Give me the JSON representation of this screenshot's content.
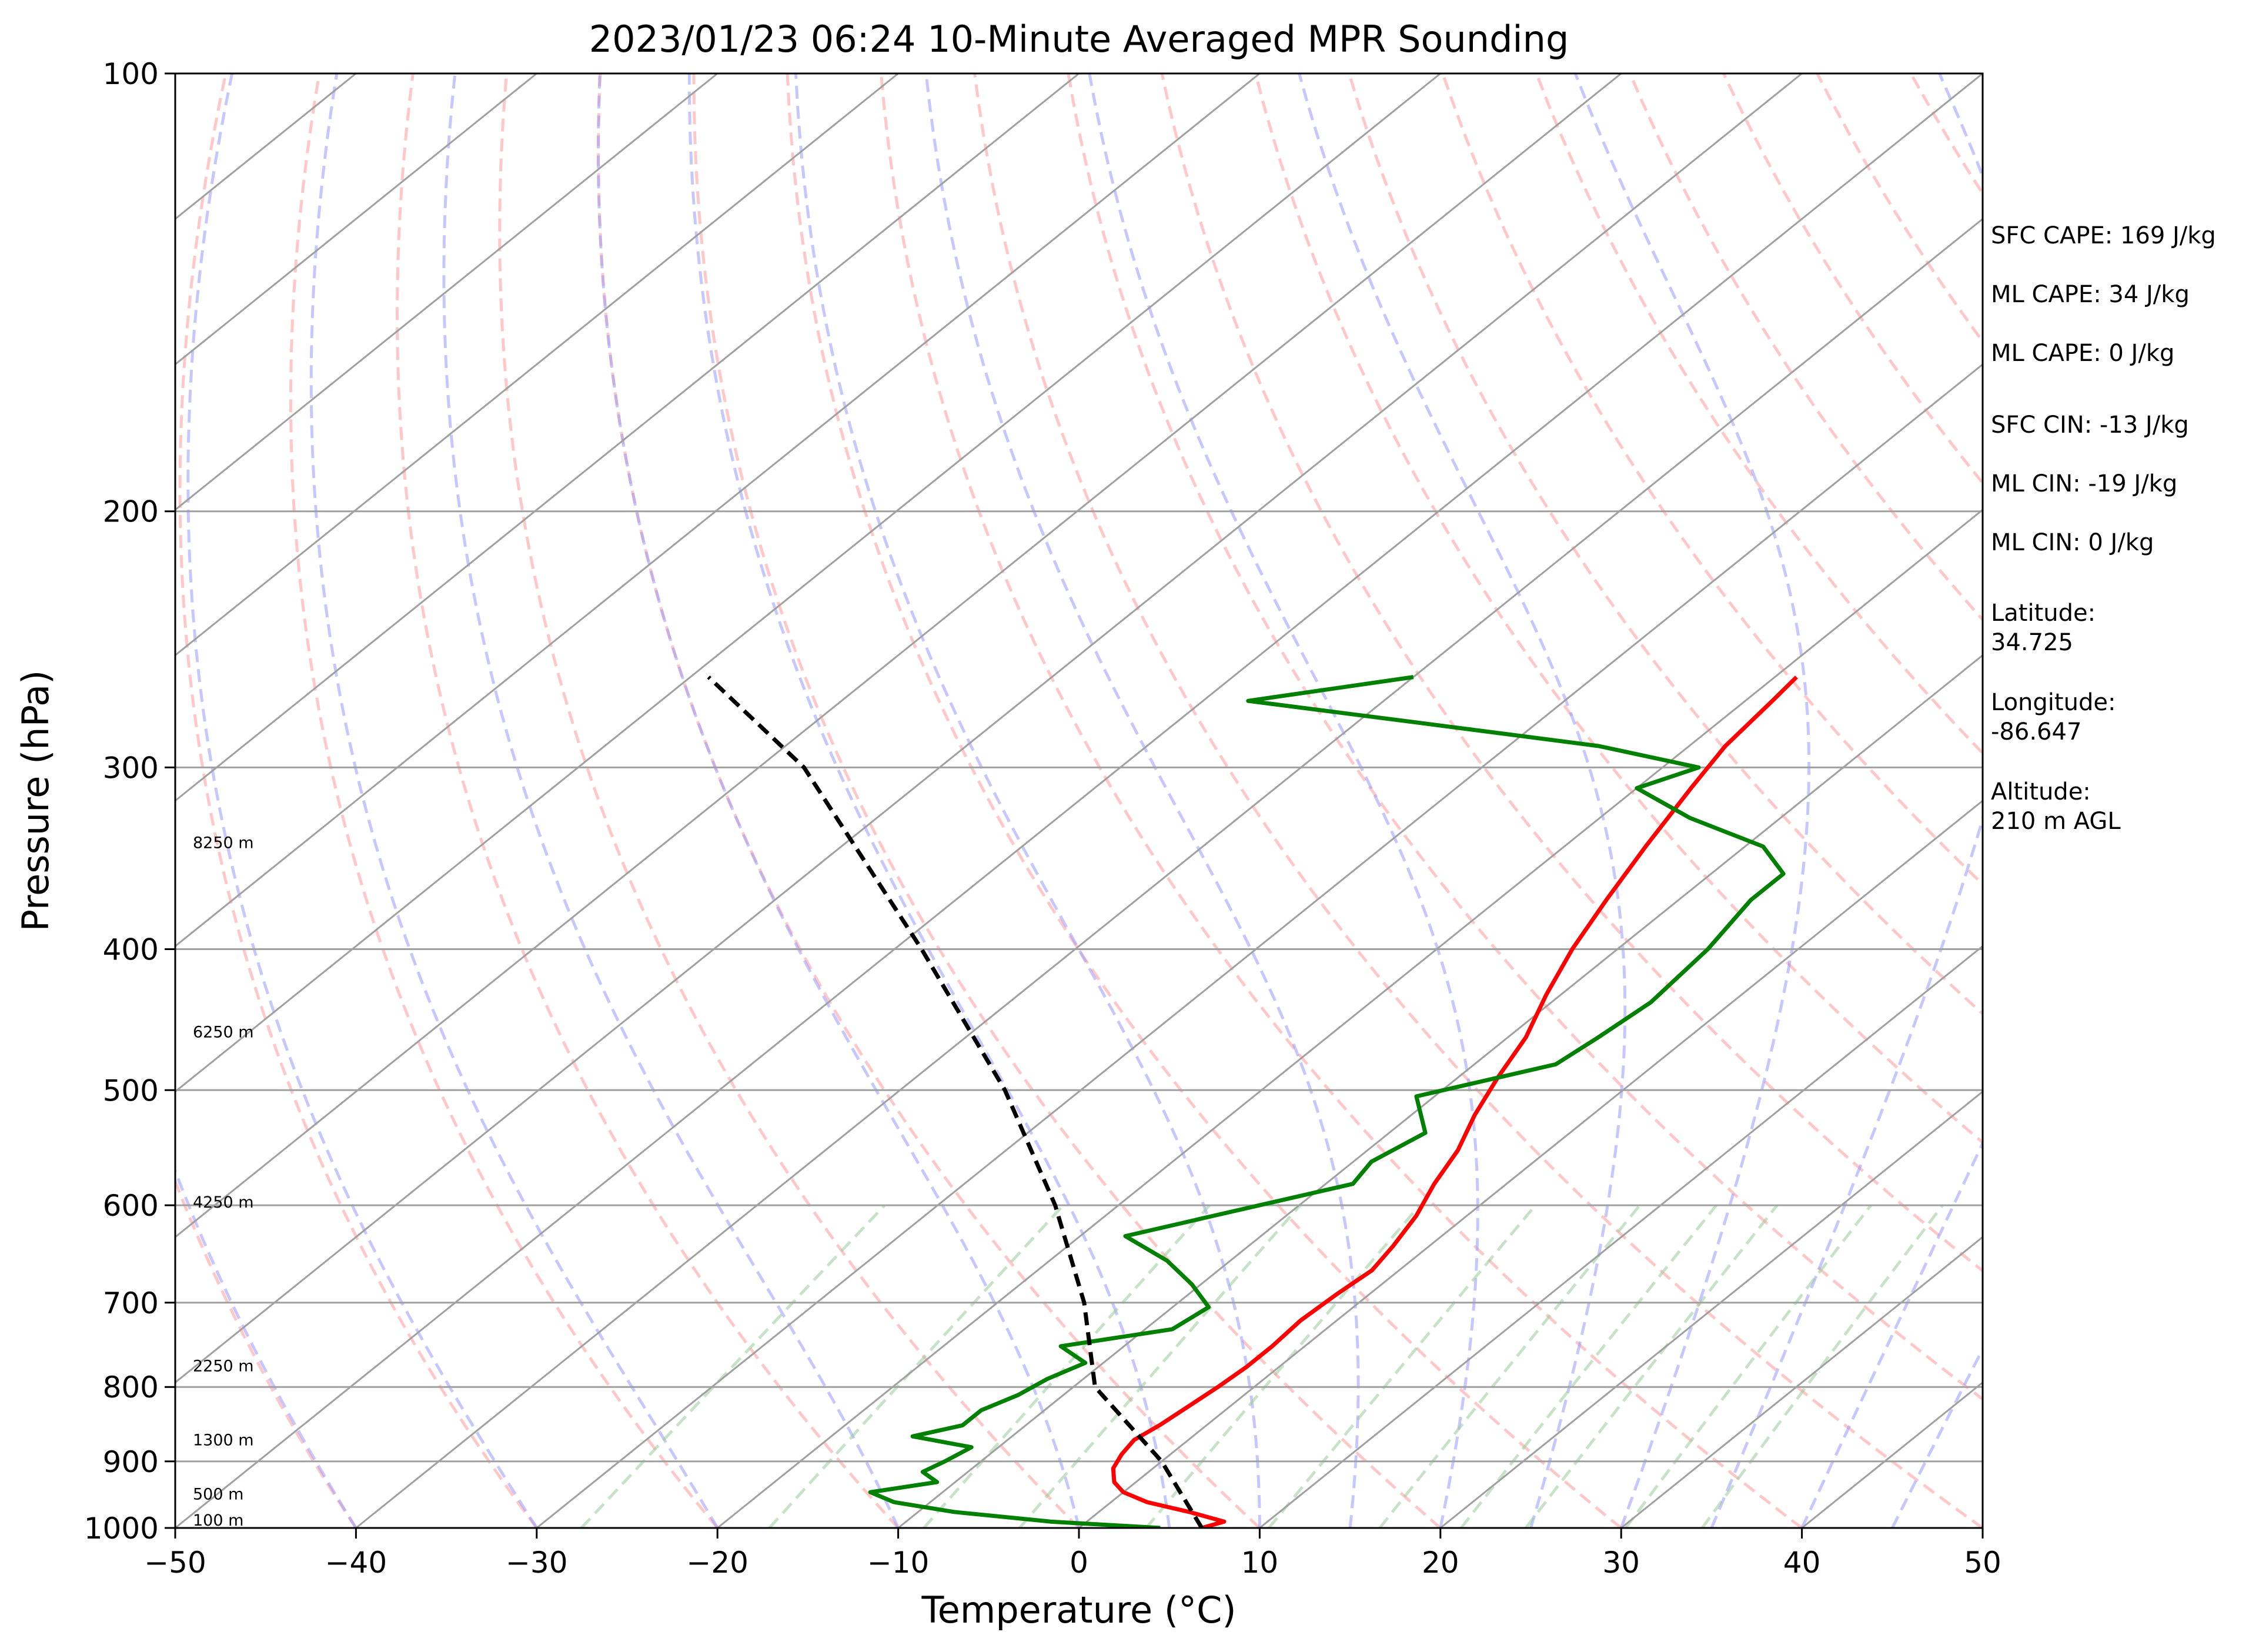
{
  "chart_data": {
    "type": "line",
    "subtype": "skew-t log-p sounding",
    "title": "2023/01/23 06:24 10-Minute Averaged MPR Sounding",
    "xlabel": "Temperature (°C)",
    "ylabel": "Pressure (hPa)",
    "xlim": [
      -50,
      50
    ],
    "ylim": [
      1000,
      100
    ],
    "y_scale": "log",
    "x_ticks": [
      -50,
      -40,
      -30,
      -20,
      -10,
      0,
      10,
      20,
      30,
      40,
      50
    ],
    "x_tick_labels": [
      "−50",
      "−40",
      "−30",
      "−20",
      "−10",
      "0",
      "10",
      "20",
      "30",
      "40",
      "50"
    ],
    "y_ticks": [
      1000,
      900,
      800,
      700,
      600,
      500,
      400,
      300,
      200,
      100
    ],
    "y_tick_labels": [
      "1000",
      "900",
      "800",
      "700",
      "600",
      "500",
      "400",
      "300",
      "200",
      "100"
    ],
    "grid": true,
    "series": [
      {
        "role": "temperature",
        "color": "#ff0000",
        "points": [
          [
            1000,
            6.8
          ],
          [
            990,
            7.6
          ],
          [
            975,
            5.0
          ],
          [
            960,
            2.0
          ],
          [
            945,
            0.0
          ],
          [
            930,
            -1.2
          ],
          [
            910,
            -2.2
          ],
          [
            890,
            -2.7
          ],
          [
            870,
            -3.0
          ],
          [
            850,
            -2.6
          ],
          [
            825,
            -2.3
          ],
          [
            800,
            -2.0
          ],
          [
            775,
            -1.8
          ],
          [
            750,
            -1.8
          ],
          [
            720,
            -2.0
          ],
          [
            690,
            -1.8
          ],
          [
            665,
            -1.5
          ],
          [
            640,
            -2.0
          ],
          [
            610,
            -2.8
          ],
          [
            580,
            -4.0
          ],
          [
            550,
            -5.0
          ],
          [
            520,
            -6.5
          ],
          [
            490,
            -7.8
          ],
          [
            460,
            -9.0
          ],
          [
            430,
            -10.8
          ],
          [
            400,
            -12.5
          ],
          [
            370,
            -14.0
          ],
          [
            340,
            -15.5
          ],
          [
            310,
            -17.0
          ],
          [
            290,
            -18.0
          ],
          [
            270,
            -18.5
          ],
          [
            260,
            -18.8
          ]
        ]
      },
      {
        "role": "dewpoint",
        "color": "#008000",
        "points": [
          [
            1000,
            4.5
          ],
          [
            990,
            -2.0
          ],
          [
            975,
            -8.0
          ],
          [
            960,
            -12.0
          ],
          [
            945,
            -14.0
          ],
          [
            930,
            -11.0
          ],
          [
            915,
            -12.5
          ],
          [
            900,
            -12.0
          ],
          [
            880,
            -11.5
          ],
          [
            865,
            -15.5
          ],
          [
            850,
            -13.5
          ],
          [
            830,
            -13.5
          ],
          [
            810,
            -12.5
          ],
          [
            790,
            -12.0
          ],
          [
            770,
            -11.0
          ],
          [
            750,
            -13.5
          ],
          [
            730,
            -8.5
          ],
          [
            705,
            -8.0
          ],
          [
            680,
            -10.5
          ],
          [
            655,
            -13.5
          ],
          [
            630,
            -17.5
          ],
          [
            610,
            -14.0
          ],
          [
            580,
            -8.5
          ],
          [
            560,
            -9.0
          ],
          [
            535,
            -8.0
          ],
          [
            505,
            -11.0
          ],
          [
            480,
            -5.5
          ],
          [
            460,
            -5.0
          ],
          [
            435,
            -4.5
          ],
          [
            400,
            -5.0
          ],
          [
            370,
            -6.0
          ],
          [
            355,
            -6.0
          ],
          [
            340,
            -9.0
          ],
          [
            325,
            -15.0
          ],
          [
            310,
            -20.0
          ],
          [
            300,
            -18.0
          ],
          [
            290,
            -25.0
          ],
          [
            280,
            -36.0
          ],
          [
            270,
            -47.5
          ],
          [
            260,
            -40.0
          ]
        ]
      },
      {
        "role": "parcel",
        "color": "#000000",
        "style": "dashed",
        "points": [
          [
            1000,
            6.8
          ],
          [
            900,
            0.0
          ],
          [
            800,
            -8.8
          ],
          [
            700,
            -15.2
          ],
          [
            600,
            -23.5
          ],
          [
            500,
            -34.2
          ],
          [
            400,
            -48.5
          ],
          [
            300,
            -67.5
          ],
          [
            260,
            -79.0
          ]
        ]
      }
    ],
    "reference_lines": {
      "isotherms": {
        "color": "#a0a0a0",
        "values": [
          -150,
          -140,
          -130,
          -120,
          -110,
          -100,
          -90,
          -80,
          -70,
          -60,
          -50,
          -40,
          -30,
          -20,
          -10,
          0,
          10,
          20,
          30,
          40,
          50
        ]
      },
      "dry_adiabats": {
        "color": "#ff9999",
        "values": [
          -40,
          -30,
          -20,
          -10,
          0,
          10,
          20,
          30,
          40,
          50,
          60,
          70,
          80,
          90,
          100,
          110,
          120,
          130,
          140,
          150,
          160,
          170,
          180,
          190,
          200
        ]
      },
      "moist_adiabats": {
        "color": "#9999ff",
        "values": [
          -40,
          -30,
          -20,
          -10,
          0,
          5,
          10,
          15,
          20,
          25,
          30,
          35,
          40,
          45,
          50
        ]
      },
      "mixing_ratio": {
        "color": "#99cc99",
        "values": [
          0.4,
          1,
          2,
          3,
          5,
          8,
          12,
          16,
          20,
          28,
          36
        ]
      }
    },
    "height_labels": [
      {
        "label": "100 m",
        "p": 988
      },
      {
        "label": "500 m",
        "p": 948
      },
      {
        "label": "1300 m",
        "p": 870
      },
      {
        "label": "2250 m",
        "p": 774
      },
      {
        "label": "4250 m",
        "p": 597
      },
      {
        "label": "6250 m",
        "p": 456
      },
      {
        "label": "8250 m",
        "p": 338
      }
    ],
    "annotations": [
      {
        "key": "sfc_cape",
        "text": "SFC CAPE: 169 J/kg"
      },
      {
        "key": "ml_cape",
        "text": "ML CAPE: 34 J/kg"
      },
      {
        "key": "ml_cape_2",
        "text": "ML CAPE: 0 J/kg"
      },
      {
        "key": "sfc_cin",
        "text": "SFC CIN: -13 J/kg"
      },
      {
        "key": "ml_cin",
        "text": "ML CIN: -19 J/kg"
      },
      {
        "key": "ml_cin_2",
        "text": "ML CIN: 0 J/kg"
      },
      {
        "key": "latitude",
        "lines": [
          "Latitude:",
          "34.725"
        ]
      },
      {
        "key": "longitude",
        "lines": [
          "Longitude:",
          "-86.647"
        ]
      },
      {
        "key": "altitude",
        "lines": [
          "Altitude:",
          "210 m AGL"
        ]
      }
    ]
  }
}
